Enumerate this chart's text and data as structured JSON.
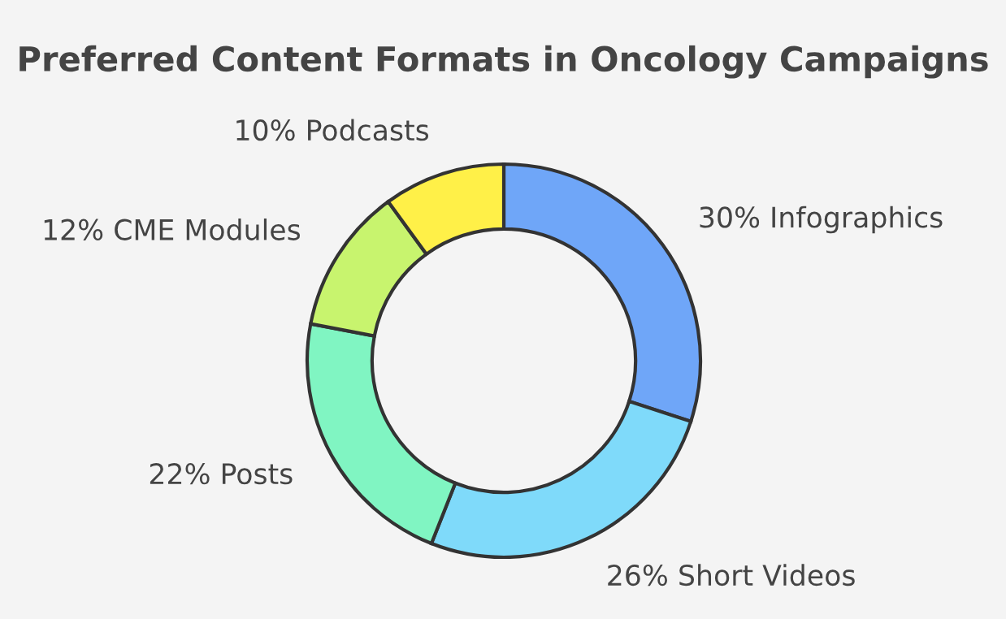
{
  "chart_data": {
    "type": "donut",
    "title": "Preferred Content Formats in Oncology Campaigns",
    "categories": [
      "Infographics",
      "Short Videos",
      "Posts",
      "CME Modules",
      "Podcasts"
    ],
    "values": [
      30,
      26,
      22,
      12,
      10
    ],
    "value_labels": [
      "30%",
      "26%",
      "22%",
      "12%",
      "10%"
    ],
    "colors": [
      "#6fa6f8",
      "#7fdafa",
      "#80f5c2",
      "#c8f46e",
      "#fff048"
    ],
    "legend": false
  }
}
